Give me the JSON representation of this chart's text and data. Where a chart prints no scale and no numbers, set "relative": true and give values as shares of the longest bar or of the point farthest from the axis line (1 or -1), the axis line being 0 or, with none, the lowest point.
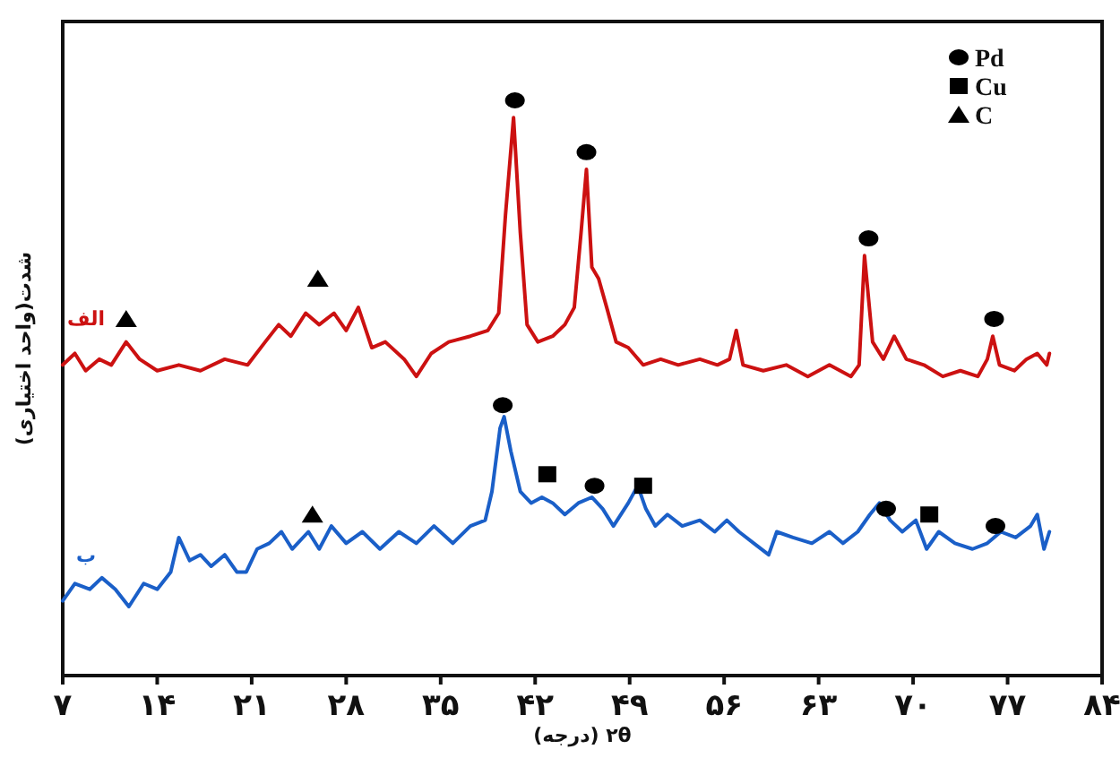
{
  "chart_data": {
    "type": "line",
    "relative": true,
    "xlabel": "۲θ (درجه)",
    "ylabel": "شدت(واحد اختیاری)",
    "xlim": [
      7,
      84
    ],
    "xticks": [
      {
        "value": 7,
        "label": "۷"
      },
      {
        "value": 14,
        "label": "۱۴"
      },
      {
        "value": 21,
        "label": "۲۱"
      },
      {
        "value": 28,
        "label": "۲۸"
      },
      {
        "value": 35,
        "label": "۳۵"
      },
      {
        "value": 42,
        "label": "۴۲"
      },
      {
        "value": 49,
        "label": "۴۹"
      },
      {
        "value": 56,
        "label": "۵۶"
      },
      {
        "value": 63,
        "label": "۶۳"
      },
      {
        "value": 70,
        "label": "۷۰"
      },
      {
        "value": 77,
        "label": "۷۷"
      },
      {
        "value": 84,
        "label": "۸۴"
      }
    ],
    "grid": false,
    "legend": "top right",
    "series": [
      {
        "name": "الف",
        "color": "#cc1111",
        "x": [
          7.0,
          7.9,
          8.7,
          9.7,
          10.6,
          11.7,
          12.7,
          14.0,
          15.6,
          17.2,
          19.0,
          20.7,
          22.0,
          23.0,
          23.9,
          25.0,
          26.0,
          27.1,
          28.0,
          28.9,
          29.9,
          30.9,
          32.3,
          33.2,
          34.3,
          35.6,
          37.2,
          38.5,
          39.3,
          39.8,
          40.4,
          40.9,
          41.4,
          42.2,
          43.3,
          44.2,
          44.9,
          45.4,
          45.8,
          46.2,
          46.7,
          47.3,
          48.0,
          48.9,
          50.0,
          51.3,
          52.6,
          54.2,
          55.5,
          56.4,
          56.9,
          57.4,
          58.9,
          60.6,
          62.2,
          63.8,
          65.4,
          66.0,
          66.4,
          67.0,
          67.8,
          68.6,
          69.5,
          70.8,
          72.2,
          73.5,
          74.8,
          75.5,
          75.9,
          76.4,
          77.5,
          78.4,
          79.2,
          79.9,
          80.1
        ],
        "values": [
          0.54,
          0.56,
          0.53,
          0.55,
          0.54,
          0.58,
          0.55,
          0.53,
          0.54,
          0.53,
          0.55,
          0.54,
          0.58,
          0.61,
          0.59,
          0.63,
          0.61,
          0.63,
          0.6,
          0.64,
          0.57,
          0.58,
          0.55,
          0.52,
          0.56,
          0.58,
          0.59,
          0.6,
          0.63,
          0.8,
          0.97,
          0.77,
          0.61,
          0.58,
          0.59,
          0.61,
          0.64,
          0.77,
          0.88,
          0.71,
          0.69,
          0.64,
          0.58,
          0.57,
          0.54,
          0.55,
          0.54,
          0.55,
          0.54,
          0.55,
          0.6,
          0.54,
          0.53,
          0.54,
          0.52,
          0.54,
          0.52,
          0.54,
          0.73,
          0.58,
          0.55,
          0.59,
          0.55,
          0.54,
          0.52,
          0.53,
          0.52,
          0.55,
          0.59,
          0.54,
          0.53,
          0.55,
          0.56,
          0.54,
          0.56
        ]
      },
      {
        "name": "ب",
        "color": "#1a5fc8",
        "x": [
          7.0,
          7.9,
          9.0,
          9.9,
          10.9,
          11.9,
          13.0,
          14.0,
          15.0,
          15.6,
          16.4,
          17.2,
          18.0,
          19.0,
          19.9,
          20.6,
          21.4,
          22.3,
          23.2,
          24.0,
          25.2,
          26.0,
          26.9,
          28.0,
          29.2,
          30.5,
          31.9,
          33.2,
          34.5,
          35.9,
          37.2,
          38.3,
          38.8,
          39.4,
          39.7,
          40.2,
          40.9,
          41.7,
          42.5,
          43.3,
          44.2,
          45.2,
          46.2,
          47.0,
          47.8,
          48.9,
          49.6,
          50.2,
          50.9,
          51.8,
          52.9,
          54.2,
          55.3,
          56.2,
          57.1,
          58.2,
          59.3,
          59.9,
          61.1,
          62.5,
          63.8,
          64.8,
          65.9,
          66.8,
          67.5,
          68.3,
          69.2,
          70.2,
          71.0,
          71.9,
          73.1,
          74.4,
          75.5,
          76.5,
          77.6,
          78.7,
          79.2,
          79.7,
          80.1
        ],
        "values": [
          0.13,
          0.16,
          0.15,
          0.17,
          0.15,
          0.12,
          0.16,
          0.15,
          0.18,
          0.24,
          0.2,
          0.21,
          0.19,
          0.21,
          0.18,
          0.18,
          0.22,
          0.23,
          0.25,
          0.22,
          0.25,
          0.22,
          0.26,
          0.23,
          0.25,
          0.22,
          0.25,
          0.23,
          0.26,
          0.23,
          0.26,
          0.27,
          0.32,
          0.43,
          0.45,
          0.39,
          0.32,
          0.3,
          0.31,
          0.3,
          0.28,
          0.3,
          0.31,
          0.29,
          0.26,
          0.3,
          0.33,
          0.29,
          0.26,
          0.28,
          0.26,
          0.27,
          0.25,
          0.27,
          0.25,
          0.23,
          0.21,
          0.25,
          0.24,
          0.23,
          0.25,
          0.23,
          0.25,
          0.28,
          0.3,
          0.27,
          0.25,
          0.27,
          0.22,
          0.25,
          0.23,
          0.22,
          0.23,
          0.25,
          0.24,
          0.26,
          0.28,
          0.22,
          0.25
        ]
      },
      {
        "name": "Pd",
        "type": "scatter",
        "marker": "circle",
        "color": "#000000",
        "x": [
          40.5,
          45.8,
          66.7,
          76.0,
          39.6,
          46.4,
          68.0,
          76.1
        ],
        "values": [
          1.0,
          0.91,
          0.76,
          0.62,
          0.47,
          0.33,
          0.29,
          0.26
        ]
      },
      {
        "name": "Cu",
        "type": "scatter",
        "marker": "square",
        "color": "#000000",
        "x": [
          42.9,
          50.0,
          71.2
        ],
        "values": [
          0.35,
          0.33,
          0.28
        ]
      },
      {
        "name": "C",
        "type": "scatter",
        "marker": "triangle",
        "color": "#000000",
        "x": [
          11.7,
          25.9,
          25.5
        ],
        "values": [
          0.62,
          0.69,
          0.28
        ]
      }
    ]
  }
}
